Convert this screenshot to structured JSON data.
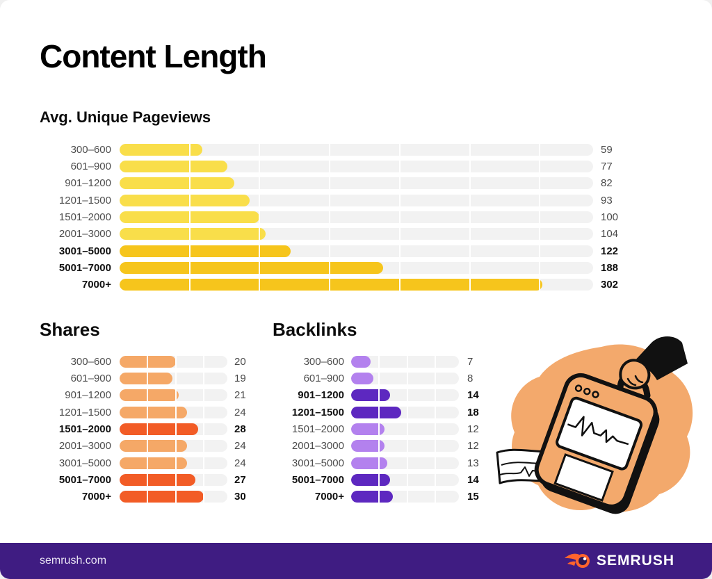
{
  "header": {
    "title": "Content Length"
  },
  "chart_data": [
    {
      "type": "bar",
      "orientation": "horizontal",
      "title": "Avg. Unique Pageviews",
      "categories": [
        "300–600",
        "601–900",
        "901–1200",
        "1201–1500",
        "1501–2000",
        "2001–3000",
        "3001–5000",
        "5001–7000",
        "7000+"
      ],
      "values": [
        59,
        77,
        82,
        93,
        100,
        104,
        122,
        188,
        302
      ],
      "emphasized": [
        false,
        false,
        false,
        false,
        false,
        false,
        true,
        true,
        true
      ],
      "bar_color": "#F9DE4A",
      "emphasis_color": "#F6C51C",
      "track_color": "#F2F2F2",
      "xlim": [
        0,
        338
      ],
      "gridlines": [
        50,
        100,
        150,
        200,
        250,
        300
      ],
      "value_labels": "right",
      "legend": "none"
    },
    {
      "type": "bar",
      "orientation": "horizontal",
      "title": "Shares",
      "categories": [
        "300–600",
        "601–900",
        "901–1200",
        "1201–1500",
        "1501–2000",
        "2001–3000",
        "3001–5000",
        "5001–7000",
        "7000+"
      ],
      "values": [
        20,
        19,
        21,
        24,
        28,
        24,
        24,
        27,
        30
      ],
      "emphasized": [
        false,
        false,
        false,
        false,
        true,
        false,
        false,
        true,
        true
      ],
      "bar_color": "#F5A867",
      "emphasis_color": "#F25C26",
      "track_color": "#F2F2F2",
      "xlim": [
        0,
        38.5
      ],
      "gridlines": [
        10,
        20,
        30
      ],
      "value_labels": "right",
      "legend": "none"
    },
    {
      "type": "bar",
      "orientation": "horizontal",
      "title": "Backlinks",
      "categories": [
        "300–600",
        "601–900",
        "901–1200",
        "1201–1500",
        "1501–2000",
        "2001–3000",
        "3001–5000",
        "5001–7000",
        "7000+"
      ],
      "values": [
        7,
        8,
        14,
        18,
        12,
        12,
        13,
        14,
        15
      ],
      "emphasized": [
        false,
        false,
        true,
        true,
        false,
        false,
        false,
        true,
        true
      ],
      "bar_color": "#B381EE",
      "emphasis_color": "#5D28C0",
      "track_color": "#F2F2F2",
      "xlim": [
        0,
        38.5
      ],
      "gridlines": [
        10,
        20,
        30
      ],
      "value_labels": "right",
      "legend": "none"
    }
  ],
  "illustration": {
    "name": "hand-holding-ekg-monitor",
    "accent": "#F3A96C"
  },
  "footer": {
    "site": "semrush.com",
    "brand": "SEMRUSH"
  },
  "style": {
    "footer_bg": "#3F1C82",
    "track": "#F2F2F2",
    "logo_orange": "#FF642D",
    "logo_eye": "#2B1654",
    "illustration_orange": "#F3A96C",
    "ink": "#141414"
  }
}
